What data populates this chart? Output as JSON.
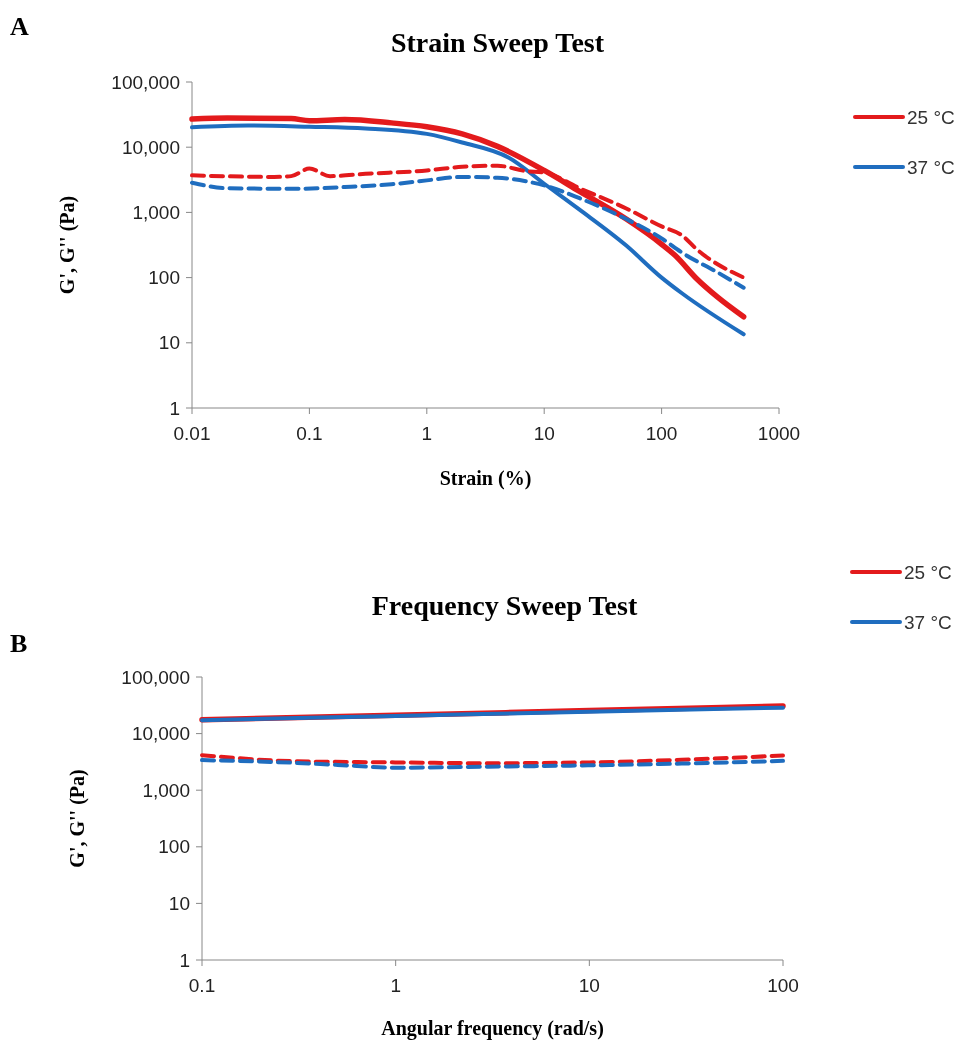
{
  "chart_data": [
    {
      "type": "line",
      "title": "Strain Sweep Test",
      "xlabel": "Strain (%)",
      "ylabel": "G', G'' (Pa)",
      "annotations": [
        "A"
      ],
      "log": "xy",
      "legend": "right",
      "xlim": [
        0.01,
        1000
      ],
      "xticks": [
        0.01,
        0.1,
        1,
        10,
        100,
        1000
      ],
      "ylim": [
        1,
        100000
      ],
      "yticks": [
        1,
        10,
        100,
        {
          "value": 1000,
          "label": "1,000"
        },
        {
          "value": 10000,
          "label": "10,000"
        },
        {
          "value": 100000,
          "label": "100,000"
        }
      ],
      "series": [
        {
          "name": "25 °C",
          "color": "#e31a1c",
          "line_style": "solid",
          "x": [
            0.01,
            0.02,
            0.07,
            0.1,
            0.2,
            0.5,
            1,
            2,
            4,
            10,
            20,
            50,
            100,
            130,
            200,
            300,
            500
          ],
          "values": [
            27000,
            28000,
            27500,
            25500,
            26500,
            23600,
            20600,
            16000,
            10300,
            4400,
            2100,
            790,
            325,
            220,
            95,
            50,
            25
          ]
        },
        {
          "name": "37 °C",
          "color": "#1f6dbf",
          "line_style": "solid",
          "x": [
            0.01,
            0.03,
            0.1,
            0.3,
            1,
            2,
            5,
            10,
            20,
            50,
            100,
            150,
            500
          ],
          "values": [
            20200,
            21500,
            20600,
            19400,
            16000,
            11800,
            6900,
            2750,
            1100,
            310,
            100,
            57,
            13.5
          ]
        },
        {
          "color": "#e31a1c",
          "line_style": "dashed",
          "x": [
            0.01,
            0.05,
            0.07,
            0.1,
            0.15,
            0.3,
            1,
            2,
            4,
            7,
            10,
            20,
            50,
            100,
            150,
            200,
            500
          ],
          "values": [
            3700,
            3500,
            3600,
            4700,
            3600,
            3900,
            4400,
            5000,
            5200,
            4300,
            4100,
            2350,
            1150,
            610,
            440,
            270,
            100
          ]
        },
        {
          "color": "#1f6dbf",
          "line_style": "dashed",
          "x": [
            0.01,
            0.02,
            0.07,
            0.2,
            0.5,
            1,
            2,
            4,
            7,
            10,
            20,
            50,
            100,
            150,
            300,
            500
          ],
          "values": [
            2850,
            2350,
            2300,
            2450,
            2700,
            3100,
            3500,
            3400,
            3000,
            2600,
            1650,
            790,
            400,
            240,
            120,
            70
          ]
        }
      ]
    },
    {
      "type": "line",
      "title": "Frequency Sweep Test",
      "xlabel": "Angular frequency (rad/s)",
      "ylabel": "G', G'' (Pa)",
      "annotations": [
        "B"
      ],
      "log": "xy",
      "legend": "top right",
      "xlim": [
        0.1,
        100
      ],
      "xticks": [
        0.1,
        1,
        10,
        100
      ],
      "ylim": [
        1,
        100000
      ],
      "yticks": [
        1,
        10,
        100,
        {
          "value": 1000,
          "label": "1,000"
        },
        {
          "value": 10000,
          "label": "10,000"
        },
        {
          "value": 100000,
          "label": "100,000"
        }
      ],
      "series": [
        {
          "name": "25 °C",
          "color": "#e31a1c",
          "line_style": "solid",
          "x": [
            0.1,
            1,
            10,
            100
          ],
          "values": [
            17600,
            21000,
            25500,
            30800
          ]
        },
        {
          "name": "37 °C",
          "color": "#1f6dbf",
          "line_style": "solid",
          "x": [
            0.1,
            1,
            10,
            100
          ],
          "values": [
            17200,
            20500,
            24400,
            28700
          ]
        },
        {
          "color": "#e31a1c",
          "line_style": "dashed",
          "x": [
            0.1,
            0.3,
            1,
            3,
            10,
            30,
            100
          ],
          "values": [
            4150,
            3250,
            3100,
            3000,
            3100,
            3450,
            4100
          ]
        },
        {
          "color": "#1f6dbf",
          "line_style": "dashed",
          "x": [
            0.1,
            0.3,
            0.5,
            1,
            3,
            10,
            30,
            100
          ],
          "values": [
            3400,
            3050,
            2800,
            2500,
            2600,
            2750,
            2950,
            3300
          ]
        }
      ]
    }
  ]
}
